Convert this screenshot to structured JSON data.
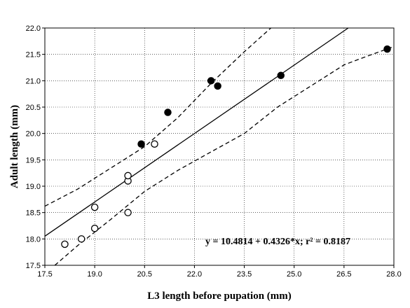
{
  "chart_data": {
    "type": "scatter",
    "xlabel": "L3 length before pupation (mm)",
    "ylabel": "Adult length (mm)",
    "xlim": [
      17.5,
      28.0
    ],
    "ylim": [
      17.5,
      22.0
    ],
    "xticks": [
      "17.5",
      "19.0",
      "20.5",
      "22.0",
      "23.5",
      "25.0",
      "26.5",
      "28.0"
    ],
    "yticks": [
      "17.5",
      "18.0",
      "18.5",
      "19.0",
      "19.5",
      "20.0",
      "20.5",
      "21.0",
      "21.5",
      "22.0"
    ],
    "grid": "dotted",
    "annotation": "y = 10.4814 + 0.4326*x; r² = 0.8187",
    "regression": {
      "intercept": 10.4814,
      "slope": 0.4326
    },
    "confidence_band_upper": [
      [
        17.5,
        18.62
      ],
      [
        18.5,
        18.95
      ],
      [
        19.5,
        19.35
      ],
      [
        20.5,
        19.75
      ],
      [
        21.5,
        20.3
      ],
      [
        22.5,
        20.95
      ],
      [
        23.5,
        21.55
      ],
      [
        24.3,
        22.0
      ]
    ],
    "confidence_band_lower": [
      [
        17.8,
        17.5
      ],
      [
        18.5,
        17.88
      ],
      [
        19.5,
        18.38
      ],
      [
        20.5,
        18.9
      ],
      [
        21.5,
        19.3
      ],
      [
        22.5,
        19.65
      ],
      [
        23.5,
        20.0
      ],
      [
        24.5,
        20.5
      ],
      [
        25.5,
        20.9
      ],
      [
        26.5,
        21.3
      ],
      [
        27.0,
        21.42
      ],
      [
        28.0,
        21.65
      ]
    ],
    "series": [
      {
        "marker": "open",
        "points": [
          [
            18.1,
            17.9
          ],
          [
            18.6,
            18.0
          ],
          [
            19.0,
            18.2
          ],
          [
            19.0,
            18.6
          ],
          [
            20.0,
            18.5
          ],
          [
            20.0,
            19.1
          ],
          [
            20.0,
            19.2
          ],
          [
            20.8,
            19.8
          ]
        ]
      },
      {
        "marker": "filled",
        "points": [
          [
            20.4,
            19.8
          ],
          [
            21.2,
            20.4
          ],
          [
            22.5,
            21.0
          ],
          [
            22.7,
            20.9
          ],
          [
            24.6,
            21.1
          ],
          [
            27.8,
            21.6
          ]
        ]
      }
    ]
  }
}
